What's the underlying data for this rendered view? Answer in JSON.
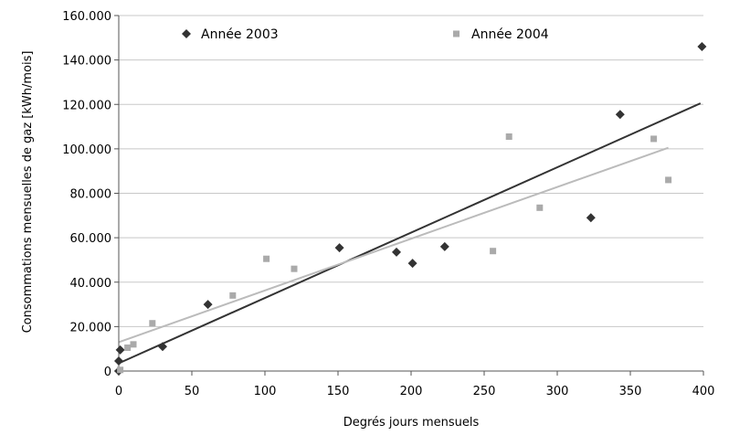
{
  "chart_data": {
    "type": "scatter",
    "xlabel": "Degrés jours mensuels",
    "ylabel": "Consommations mensuelles de gaz [kWh/mois]",
    "xlim": [
      0,
      400
    ],
    "ylim": [
      0,
      160000
    ],
    "x_ticks": [
      {
        "value": 0,
        "label": "0"
      },
      {
        "value": 50,
        "label": "50"
      },
      {
        "value": 100,
        "label": "100"
      },
      {
        "value": 150,
        "label": "150"
      },
      {
        "value": 200,
        "label": "200"
      },
      {
        "value": 250,
        "label": "250"
      },
      {
        "value": 300,
        "label": "300"
      },
      {
        "value": 350,
        "label": "350"
      },
      {
        "value": 400,
        "label": "400"
      }
    ],
    "y_ticks": [
      {
        "value": 0,
        "label": "0"
      },
      {
        "value": 20000,
        "label": "20.000"
      },
      {
        "value": 40000,
        "label": "40.000"
      },
      {
        "value": 60000,
        "label": "60.000"
      },
      {
        "value": 80000,
        "label": "80.000"
      },
      {
        "value": 100000,
        "label": "100.000"
      },
      {
        "value": 120000,
        "label": "120.000"
      },
      {
        "value": 140000,
        "label": "140.000"
      },
      {
        "value": 160000,
        "label": "160.000"
      }
    ],
    "grid": true,
    "legend_position": "top",
    "series": [
      {
        "name": "Année 2003",
        "marker": "diamond",
        "color": "#333333",
        "points": [
          {
            "x": 0,
            "y": 0
          },
          {
            "x": 0,
            "y": 4500
          },
          {
            "x": 1,
            "y": 9500
          },
          {
            "x": 30,
            "y": 11000
          },
          {
            "x": 61,
            "y": 30000
          },
          {
            "x": 151,
            "y": 55500
          },
          {
            "x": 190,
            "y": 53500
          },
          {
            "x": 201,
            "y": 48500
          },
          {
            "x": 223,
            "y": 56000
          },
          {
            "x": 323,
            "y": 69000
          },
          {
            "x": 343,
            "y": 115500
          },
          {
            "x": 399,
            "y": 146000
          }
        ],
        "trendline": {
          "x1": 0,
          "y1": 3500,
          "x2": 398,
          "y2": 120500,
          "color": "#333333"
        }
      },
      {
        "name": "Année 2004",
        "marker": "square",
        "color": "#aaaaaa",
        "points": [
          {
            "x": 1,
            "y": 500
          },
          {
            "x": 6,
            "y": 10500
          },
          {
            "x": 10,
            "y": 12000
          },
          {
            "x": 23,
            "y": 21500
          },
          {
            "x": 78,
            "y": 34000
          },
          {
            "x": 101,
            "y": 50500
          },
          {
            "x": 120,
            "y": 46000
          },
          {
            "x": 256,
            "y": 54000
          },
          {
            "x": 267,
            "y": 105500
          },
          {
            "x": 288,
            "y": 73500
          },
          {
            "x": 366,
            "y": 104500
          },
          {
            "x": 376,
            "y": 86000
          }
        ],
        "trendline": {
          "x1": 0,
          "y1": 13000,
          "x2": 376,
          "y2": 100500,
          "color": "#bbbbbb"
        }
      }
    ]
  }
}
